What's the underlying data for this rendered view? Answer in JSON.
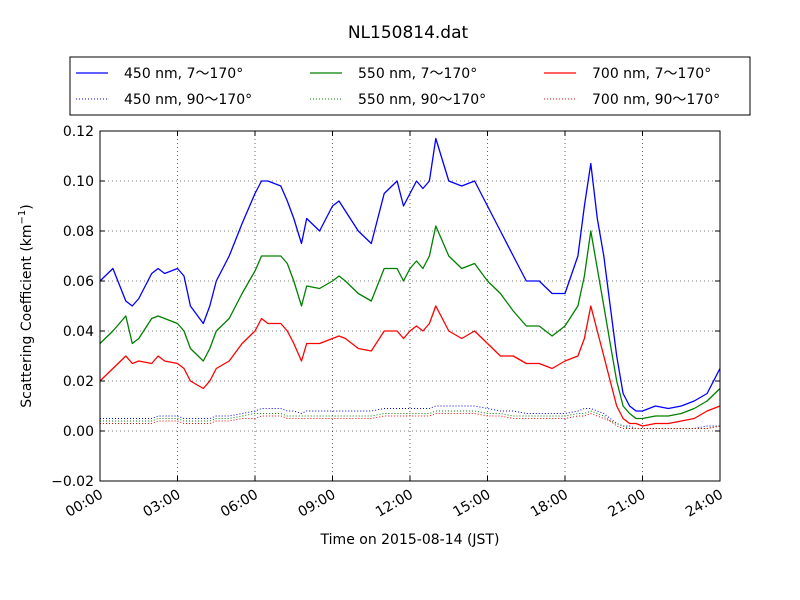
{
  "chart_data": {
    "type": "line",
    "title": "NL150814.dat",
    "xlabel": "Time on 2015-08-14 (JST)",
    "ylabel": "Scattering Coefficient (km",
    "ylabel_sup": "−1",
    "ylabel_close": ")",
    "xlim": [
      0,
      24
    ],
    "ylim": [
      -0.02,
      0.12
    ],
    "grid": true,
    "legend_position": "top",
    "x_ticks": [
      0,
      3,
      6,
      9,
      12,
      15,
      18,
      21,
      24
    ],
    "x_tick_labels": [
      "00:00",
      "03:00",
      "06:00",
      "09:00",
      "12:00",
      "15:00",
      "18:00",
      "21:00",
      "24:00"
    ],
    "y_ticks": [
      -0.02,
      0.0,
      0.02,
      0.04,
      0.06,
      0.08,
      0.1,
      0.12
    ],
    "y_tick_labels": [
      "−0.02",
      "0.00",
      "0.02",
      "0.04",
      "0.06",
      "0.08",
      "0.10",
      "0.12"
    ],
    "x_hours": [
      0.0,
      0.5,
      1.0,
      1.25,
      1.5,
      2.0,
      2.25,
      2.5,
      3.0,
      3.25,
      3.5,
      4.0,
      4.25,
      4.5,
      5.0,
      5.5,
      6.0,
      6.25,
      6.5,
      7.0,
      7.25,
      7.5,
      7.8,
      8.0,
      8.5,
      9.0,
      9.25,
      9.5,
      10.0,
      10.5,
      11.0,
      11.5,
      11.75,
      12.0,
      12.25,
      12.5,
      12.75,
      13.0,
      13.5,
      14.0,
      14.5,
      15.0,
      15.5,
      16.0,
      16.5,
      17.0,
      17.5,
      18.0,
      18.5,
      18.75,
      19.0,
      19.25,
      19.5,
      19.75,
      20.0,
      20.25,
      20.5,
      20.75,
      21.0,
      21.5,
      22.0,
      22.5,
      23.0,
      23.5,
      24.0
    ],
    "series": [
      {
        "name": "450 nm, 7～170°",
        "color": "#0000ff",
        "style": "solid",
        "values": [
          0.06,
          0.065,
          0.052,
          0.05,
          0.053,
          0.063,
          0.065,
          0.063,
          0.065,
          0.062,
          0.05,
          0.043,
          0.05,
          0.06,
          0.07,
          0.083,
          0.095,
          0.1,
          0.1,
          0.098,
          0.092,
          0.085,
          0.075,
          0.085,
          0.08,
          0.09,
          0.092,
          0.088,
          0.08,
          0.075,
          0.095,
          0.1,
          0.09,
          0.095,
          0.1,
          0.097,
          0.1,
          0.117,
          0.1,
          0.098,
          0.1,
          0.09,
          0.08,
          0.07,
          0.06,
          0.06,
          0.055,
          0.055,
          0.07,
          0.09,
          0.107,
          0.085,
          0.07,
          0.05,
          0.03,
          0.015,
          0.01,
          0.008,
          0.008,
          0.01,
          0.009,
          0.01,
          0.012,
          0.015,
          0.025
        ]
      },
      {
        "name": "450 nm, 90～170°",
        "color": "#0000ff",
        "style": "dotted",
        "values": [
          0.005,
          0.005,
          0.005,
          0.005,
          0.005,
          0.005,
          0.006,
          0.006,
          0.006,
          0.005,
          0.005,
          0.005,
          0.005,
          0.006,
          0.006,
          0.007,
          0.008,
          0.009,
          0.009,
          0.009,
          0.008,
          0.008,
          0.007,
          0.008,
          0.008,
          0.008,
          0.008,
          0.008,
          0.008,
          0.008,
          0.009,
          0.009,
          0.009,
          0.009,
          0.009,
          0.009,
          0.009,
          0.01,
          0.01,
          0.01,
          0.01,
          0.009,
          0.008,
          0.008,
          0.007,
          0.007,
          0.007,
          0.007,
          0.008,
          0.009,
          0.009,
          0.008,
          0.007,
          0.005,
          0.003,
          0.002,
          0.002,
          0.001,
          0.001,
          0.001,
          0.001,
          0.001,
          0.001,
          0.002,
          0.002
        ]
      },
      {
        "name": "550 nm, 7～170°",
        "color": "#008000",
        "style": "solid",
        "values": [
          0.035,
          0.04,
          0.046,
          0.035,
          0.037,
          0.045,
          0.046,
          0.045,
          0.043,
          0.04,
          0.033,
          0.028,
          0.033,
          0.04,
          0.045,
          0.055,
          0.064,
          0.07,
          0.07,
          0.07,
          0.067,
          0.06,
          0.05,
          0.058,
          0.057,
          0.06,
          0.062,
          0.06,
          0.055,
          0.052,
          0.065,
          0.065,
          0.06,
          0.065,
          0.068,
          0.065,
          0.07,
          0.082,
          0.07,
          0.065,
          0.067,
          0.06,
          0.055,
          0.048,
          0.042,
          0.042,
          0.038,
          0.042,
          0.05,
          0.062,
          0.08,
          0.065,
          0.05,
          0.035,
          0.02,
          0.01,
          0.007,
          0.005,
          0.005,
          0.006,
          0.006,
          0.007,
          0.009,
          0.012,
          0.017
        ]
      },
      {
        "name": "550 nm, 90～170°",
        "color": "#008000",
        "style": "dotted",
        "values": [
          0.004,
          0.004,
          0.004,
          0.004,
          0.004,
          0.004,
          0.005,
          0.005,
          0.005,
          0.004,
          0.004,
          0.004,
          0.004,
          0.005,
          0.005,
          0.006,
          0.007,
          0.007,
          0.007,
          0.007,
          0.006,
          0.006,
          0.006,
          0.006,
          0.006,
          0.006,
          0.006,
          0.006,
          0.006,
          0.006,
          0.007,
          0.007,
          0.007,
          0.007,
          0.007,
          0.007,
          0.007,
          0.008,
          0.008,
          0.008,
          0.008,
          0.007,
          0.007,
          0.006,
          0.006,
          0.006,
          0.006,
          0.006,
          0.007,
          0.007,
          0.008,
          0.007,
          0.006,
          0.004,
          0.003,
          0.002,
          0.001,
          0.001,
          0.001,
          0.001,
          0.001,
          0.001,
          0.001,
          0.001,
          0.002
        ]
      },
      {
        "name": "700 nm, 7～170°",
        "color": "#ff0000",
        "style": "solid",
        "values": [
          0.02,
          0.025,
          0.03,
          0.027,
          0.028,
          0.027,
          0.03,
          0.028,
          0.027,
          0.025,
          0.02,
          0.017,
          0.02,
          0.025,
          0.028,
          0.035,
          0.04,
          0.045,
          0.043,
          0.043,
          0.04,
          0.035,
          0.028,
          0.035,
          0.035,
          0.037,
          0.038,
          0.037,
          0.033,
          0.032,
          0.04,
          0.04,
          0.037,
          0.04,
          0.042,
          0.04,
          0.043,
          0.05,
          0.04,
          0.037,
          0.04,
          0.035,
          0.03,
          0.03,
          0.027,
          0.027,
          0.025,
          0.028,
          0.03,
          0.037,
          0.05,
          0.04,
          0.03,
          0.02,
          0.01,
          0.005,
          0.003,
          0.003,
          0.002,
          0.003,
          0.003,
          0.004,
          0.005,
          0.008,
          0.01
        ]
      },
      {
        "name": "700 nm, 90～170°",
        "color": "#ff0000",
        "style": "dotted",
        "values": [
          0.003,
          0.003,
          0.003,
          0.003,
          0.003,
          0.003,
          0.004,
          0.004,
          0.004,
          0.003,
          0.003,
          0.003,
          0.003,
          0.004,
          0.004,
          0.005,
          0.005,
          0.006,
          0.006,
          0.006,
          0.005,
          0.005,
          0.005,
          0.005,
          0.005,
          0.005,
          0.005,
          0.005,
          0.005,
          0.005,
          0.006,
          0.006,
          0.006,
          0.006,
          0.006,
          0.006,
          0.006,
          0.007,
          0.007,
          0.007,
          0.007,
          0.006,
          0.006,
          0.005,
          0.005,
          0.005,
          0.005,
          0.005,
          0.006,
          0.006,
          0.007,
          0.006,
          0.005,
          0.004,
          0.002,
          0.001,
          0.001,
          0.001,
          0.001,
          0.001,
          0.001,
          0.001,
          0.001,
          0.001,
          0.002
        ]
      }
    ]
  }
}
